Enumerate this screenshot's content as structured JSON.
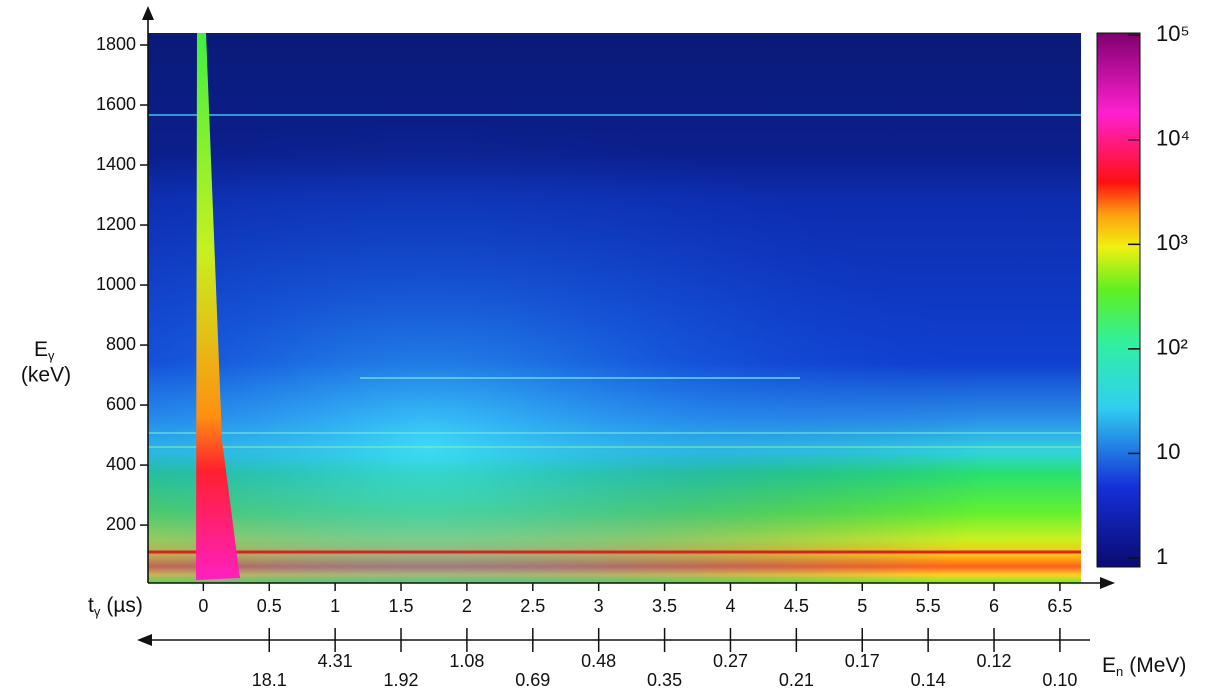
{
  "chart_data": {
    "type": "heatmap",
    "y_label": {
      "symbol": "E",
      "subscript": "γ",
      "unit": "(keV)"
    },
    "x_label": {
      "symbol": "t",
      "subscript": "γ",
      "unit": "(µs)"
    },
    "x2_label": {
      "symbol": "E",
      "subscript": "n",
      "unit": "(MeV)"
    },
    "xlim": [
      -0.42,
      6.66
    ],
    "xticks": [
      0,
      0.5,
      1,
      1.5,
      2,
      2.5,
      3,
      3.5,
      4,
      4.5,
      5,
      5.5,
      6,
      6.5
    ],
    "ylim": [
      7,
      1840
    ],
    "yticks": [
      200,
      400,
      600,
      800,
      1000,
      1200,
      1400,
      1600,
      1800
    ],
    "x2ticks": [
      18.1,
      4.31,
      1.92,
      1.08,
      0.69,
      0.48,
      0.35,
      0.27,
      0.21,
      0.17,
      0.14,
      0.12,
      {
        "value": 0.1,
        "label": "0.10"
      }
    ],
    "colorbar": {
      "scale": "log",
      "lim": [
        0.82,
        105000
      ],
      "ticks": [
        1,
        10,
        {
          "value": 100,
          "label": "10²"
        },
        {
          "value": 1000,
          "label": "10³"
        },
        {
          "value": 10000,
          "label": "10⁴"
        },
        {
          "value": 100000,
          "label": "10⁵"
        }
      ]
    }
  }
}
